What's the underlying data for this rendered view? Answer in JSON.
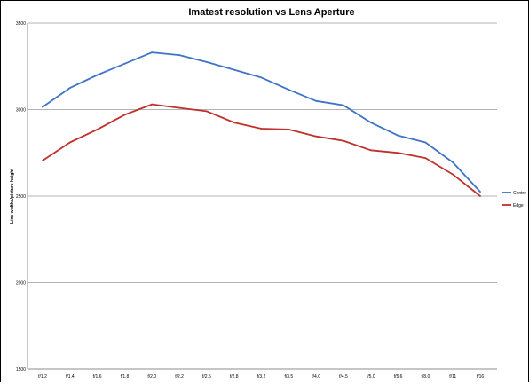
{
  "chart_data": {
    "type": "line",
    "title": "Imatest resolution vs Lens Aperture",
    "ylabel": "Line widths/picture height",
    "xlabel": "",
    "categories": [
      "f/1.2",
      "f/1.4",
      "f/1.6",
      "f/1.8",
      "f/2.0",
      "f/2.2",
      "f/2.5",
      "f/2.8",
      "f/3.2",
      "f/3.5",
      "f/4.0",
      "f/4.5",
      "f/5.0",
      "f/5.6",
      "f/8.0",
      "f/11",
      "f/16"
    ],
    "ylim": [
      1500,
      3500
    ],
    "yticks": [
      1500,
      2000,
      2500,
      3000,
      3500
    ],
    "grid": true,
    "legend_position": "right",
    "series": [
      {
        "name": "Centre",
        "color": "#3f73c4",
        "values": [
          3015,
          3125,
          3200,
          3265,
          3330,
          3315,
          3275,
          3230,
          3185,
          3115,
          3050,
          3025,
          2925,
          2850,
          2810,
          2695,
          2525
        ]
      },
      {
        "name": "Edge",
        "color": "#c0302c",
        "values": [
          2705,
          2810,
          2885,
          2970,
          3030,
          3010,
          2990,
          2925,
          2890,
          2885,
          2845,
          2820,
          2765,
          2750,
          2720,
          2625,
          2500
        ]
      }
    ]
  }
}
